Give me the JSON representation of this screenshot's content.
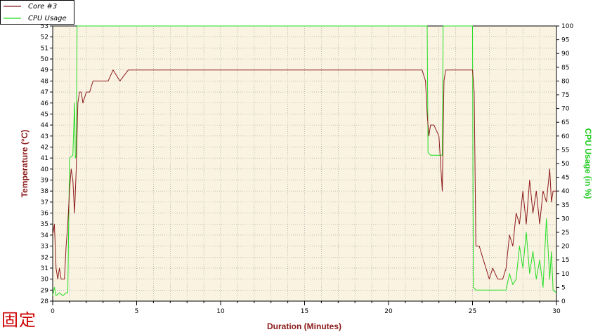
{
  "chart_data": {
    "type": "line",
    "title": "",
    "xlabel": "Duration (Minutes)",
    "ylabel_left": "Temperature (°C)",
    "ylabel_right": "CPU Usage (in %)",
    "xlim": [
      0,
      30
    ],
    "ylim_left": [
      28,
      53
    ],
    "ylim_right": [
      0,
      100
    ],
    "x_ticks": [
      0,
      5,
      10,
      15,
      20,
      25,
      30
    ],
    "y_left_ticks": [
      28,
      29,
      30,
      31,
      32,
      33,
      34,
      35,
      36,
      37,
      38,
      39,
      40,
      41,
      42,
      43,
      44,
      45,
      46,
      47,
      48,
      49,
      50,
      51,
      52,
      53
    ],
    "y_left_tick_labels": [
      "28",
      "29",
      "30",
      "31",
      "32",
      "33",
      "34",
      "35",
      "36",
      "37",
      "38",
      "39",
      "40",
      "41",
      "42",
      "43",
      "44",
      "45",
      "46",
      "47",
      "48",
      "49",
      "50",
      "51",
      "52",
      "53"
    ],
    "y_right_ticks": [
      0,
      5,
      10,
      15,
      20,
      25,
      30,
      35,
      40,
      45,
      50,
      55,
      60,
      65,
      70,
      75,
      80,
      85,
      90,
      95,
      100
    ],
    "grid": true,
    "legend_position": "top-left",
    "series": [
      {
        "name": "Core #3",
        "axis": "left",
        "color": "#8b1a1a",
        "x": [
          0,
          0.1,
          0.2,
          0.3,
          0.4,
          0.5,
          0.6,
          0.7,
          0.8,
          0.9,
          1.0,
          1.1,
          1.2,
          1.3,
          1.4,
          1.5,
          1.6,
          1.7,
          1.8,
          2.0,
          2.2,
          2.4,
          2.6,
          2.8,
          3.0,
          3.3,
          3.6,
          4.0,
          4.5,
          5.0,
          6.0,
          7.0,
          8.0,
          9.0,
          10.0,
          11.0,
          12.0,
          13.0,
          14.0,
          15.0,
          16.0,
          17.0,
          18.0,
          19.0,
          20.0,
          21.0,
          22.0,
          22.2,
          22.3,
          22.4,
          22.5,
          22.7,
          23.0,
          23.2,
          23.3,
          23.4,
          23.6,
          24.0,
          24.5,
          24.9,
          25.0,
          25.1,
          25.2,
          25.4,
          25.6,
          25.8,
          26.0,
          26.2,
          26.5,
          26.8,
          27.0,
          27.2,
          27.4,
          27.6,
          27.8,
          28.0,
          28.2,
          28.4,
          28.6,
          28.8,
          29.0,
          29.2,
          29.4,
          29.6,
          29.7,
          29.8,
          30.0
        ],
        "y": [
          34,
          35,
          31,
          30,
          31,
          30,
          30,
          30,
          33,
          35,
          38,
          40,
          39,
          36,
          40,
          46,
          47,
          47,
          46,
          47,
          47,
          48,
          48,
          48,
          48,
          48,
          49,
          48,
          49,
          49,
          49,
          49,
          49,
          49,
          49,
          49,
          49,
          49,
          49,
          49,
          49,
          49,
          49,
          49,
          49,
          49,
          49,
          48,
          45,
          43,
          44,
          44,
          43,
          38,
          48,
          49,
          49,
          49,
          49,
          49,
          49,
          47,
          33,
          33,
          32,
          31,
          30,
          31,
          30,
          30,
          31,
          34,
          33,
          36,
          35,
          38,
          35,
          39,
          36,
          38,
          35,
          38,
          37,
          40,
          37,
          38,
          38
        ]
      },
      {
        "name": "CPU Usage",
        "axis": "right",
        "color": "#22dd22",
        "x": [
          0,
          0.1,
          0.2,
          0.4,
          0.6,
          0.8,
          0.9,
          1.0,
          1.2,
          1.3,
          1.35,
          1.4,
          1.45,
          1.5,
          22.3,
          22.35,
          22.5,
          22.7,
          23.0,
          23.2,
          23.25,
          23.3,
          25.0,
          25.05,
          25.2,
          25.5,
          26.0,
          26.5,
          27.0,
          27.2,
          27.4,
          27.6,
          27.8,
          28.0,
          28.2,
          28.4,
          28.6,
          28.8,
          29.0,
          29.2,
          29.4,
          29.6,
          29.7,
          29.8,
          30.0
        ],
        "y": [
          2,
          5,
          2,
          3,
          2,
          3,
          3,
          52,
          53,
          72,
          52,
          53,
          100,
          100,
          100,
          54,
          53,
          53,
          53,
          53,
          100,
          100,
          100,
          5,
          4,
          4,
          4,
          4,
          4,
          10,
          6,
          8,
          20,
          12,
          25,
          10,
          18,
          8,
          15,
          5,
          30,
          8,
          18,
          4,
          3
        ]
      }
    ]
  },
  "stamp_text": "固定"
}
